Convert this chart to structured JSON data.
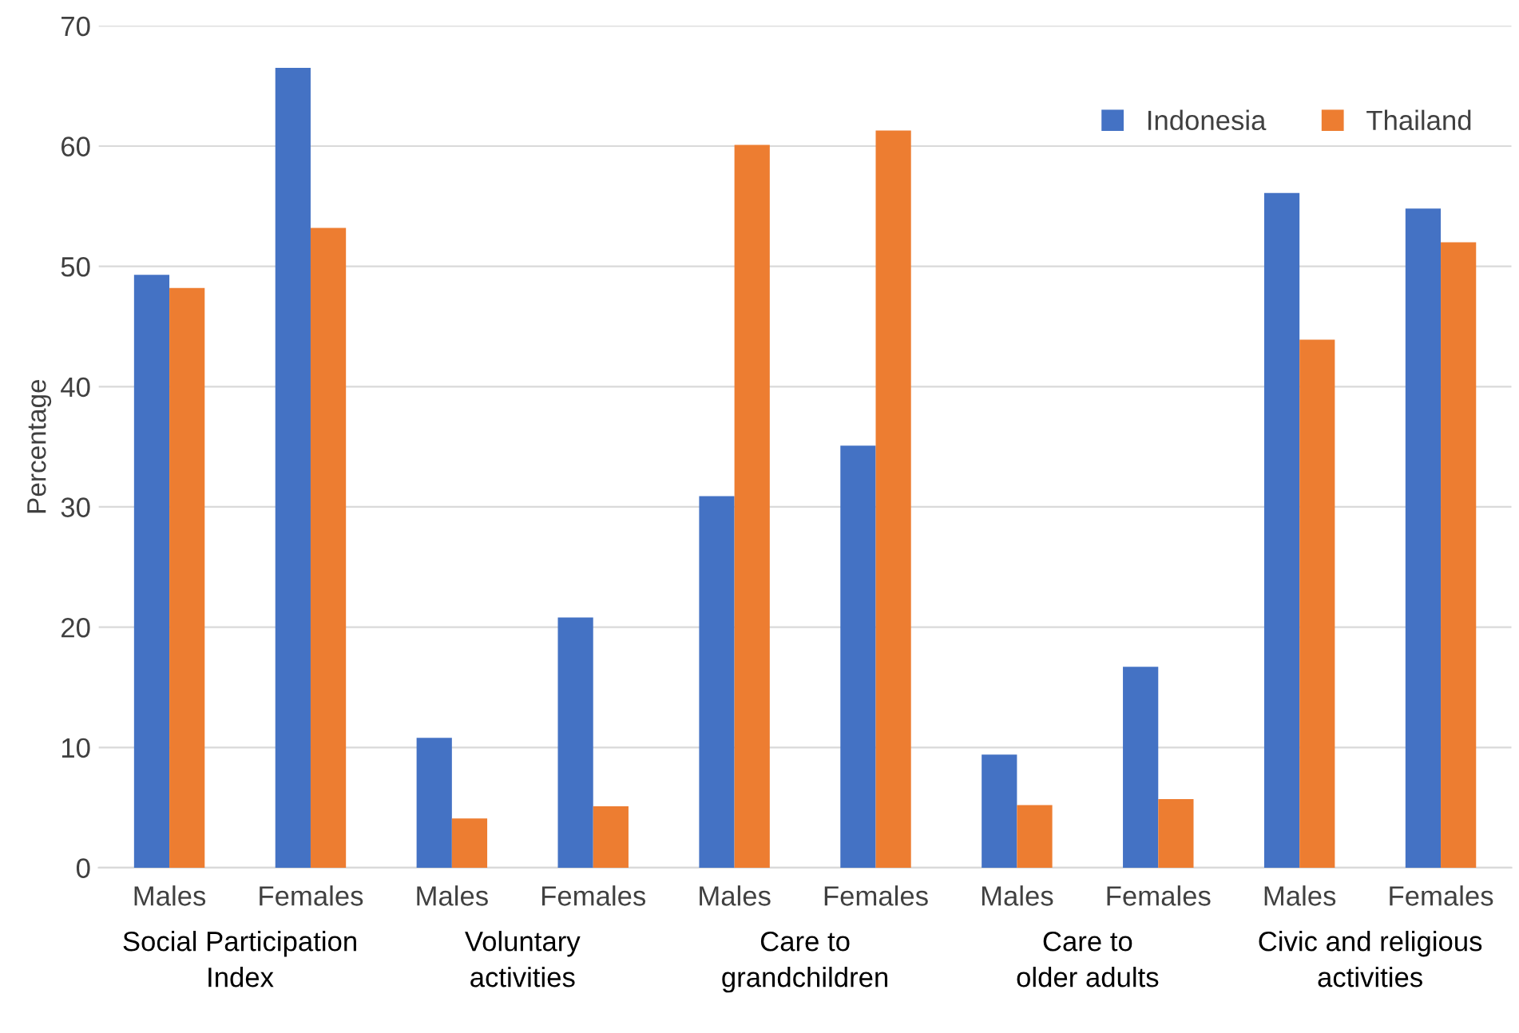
{
  "chart_data": {
    "type": "bar",
    "ylabel": "Percentage",
    "categories": [
      "Males",
      "Females",
      "Males",
      "Females",
      "Males",
      "Females",
      "Males",
      "Females",
      "Males",
      "Females"
    ],
    "series": [
      {
        "name": "Indonesia",
        "color": "#4472c4",
        "values": [
          49.3,
          66.5,
          10.8,
          20.8,
          30.9,
          35.1,
          9.4,
          16.7,
          56.1,
          54.8
        ]
      },
      {
        "name": "Thailand",
        "color": "#ed7d31",
        "values": [
          48.2,
          53.2,
          4.1,
          5.1,
          60.1,
          61.3,
          5.2,
          5.7,
          43.9,
          52.0
        ]
      }
    ],
    "annotations": [
      "Social Participation\nIndex",
      "Voluntary\nactivities",
      "Care to\ngrandchildren",
      "Care to\nolder adults",
      "Civic and religious\nactivities"
    ],
    "ylim": [
      0,
      70
    ],
    "yticks": [
      0,
      10,
      20,
      30,
      40,
      50,
      60,
      70
    ],
    "grid": "y",
    "legend": "top right"
  }
}
